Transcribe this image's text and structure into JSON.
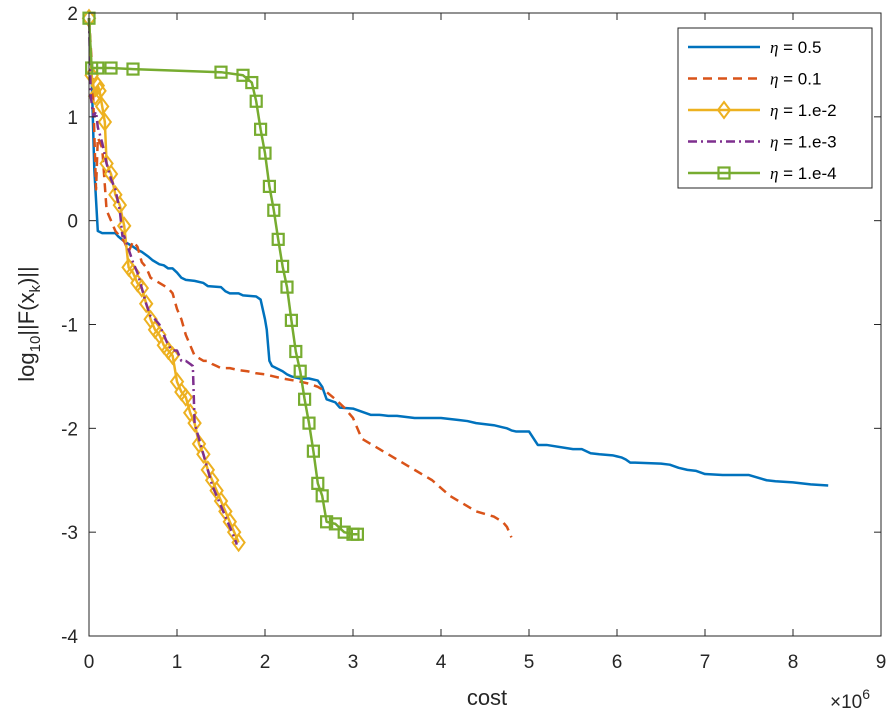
{
  "chart_data": {
    "type": "line",
    "title": "",
    "xlabel": "cost",
    "ylabel_main": "log",
    "ylabel_sub10": "10",
    "ylabel_mid": "||F(x",
    "ylabel_subk": "k",
    "ylabel_end": ")||",
    "x_exponent_base": "×10",
    "x_exponent_power": "6",
    "xlim": [
      0,
      9
    ],
    "ylim": [
      -4,
      2
    ],
    "xticks": [
      0,
      1,
      2,
      3,
      4,
      5,
      6,
      7,
      8,
      9
    ],
    "yticks": [
      2,
      1,
      0,
      -1,
      -2,
      -3,
      -4
    ],
    "legend_position": "top-right",
    "grid": false,
    "series": [
      {
        "name": "η = 0.5",
        "eta_symbol": "η",
        "eta_value": " = 0.5",
        "color": "#0072BD",
        "dash": "solid",
        "marker": "none",
        "x": [
          0.0,
          0.03,
          0.06,
          0.1,
          0.15,
          0.3,
          0.33,
          0.4,
          0.5,
          0.55,
          0.6,
          0.68,
          0.72,
          0.8,
          0.85,
          0.9,
          0.95,
          1.0,
          1.05,
          1.1,
          1.2,
          1.3,
          1.35,
          1.5,
          1.55,
          1.6,
          1.7,
          1.75,
          1.9,
          1.95,
          2.0,
          2.02,
          2.05,
          2.08,
          2.2,
          2.25,
          2.3,
          2.4,
          2.5,
          2.6,
          2.65,
          2.7,
          2.8,
          2.85,
          3.0,
          3.1,
          3.2,
          3.3,
          3.4,
          3.5,
          3.7,
          4.0,
          4.2,
          4.3,
          4.4,
          4.6,
          4.7,
          4.75,
          4.8,
          4.85,
          4.9,
          5.0,
          5.1,
          5.2,
          5.5,
          5.6,
          5.7,
          5.8,
          5.95,
          6.0,
          6.05,
          6.1,
          6.15,
          6.2,
          6.5,
          6.6,
          6.7,
          6.8,
          6.9,
          7.0,
          7.2,
          7.5,
          7.7,
          7.8,
          8.0,
          8.2,
          8.4
        ],
        "y": [
          1.95,
          1.4,
          0.5,
          -0.1,
          -0.12,
          -0.12,
          -0.15,
          -0.2,
          -0.25,
          -0.28,
          -0.3,
          -0.35,
          -0.38,
          -0.42,
          -0.43,
          -0.46,
          -0.46,
          -0.5,
          -0.55,
          -0.57,
          -0.58,
          -0.6,
          -0.63,
          -0.64,
          -0.68,
          -0.7,
          -0.7,
          -0.72,
          -0.73,
          -0.76,
          -0.95,
          -1.05,
          -1.35,
          -1.4,
          -1.45,
          -1.48,
          -1.5,
          -1.52,
          -1.52,
          -1.54,
          -1.6,
          -1.72,
          -1.75,
          -1.8,
          -1.81,
          -1.84,
          -1.87,
          -1.87,
          -1.88,
          -1.88,
          -1.9,
          -1.9,
          -1.92,
          -1.93,
          -1.95,
          -1.97,
          -1.99,
          -2.0,
          -2.02,
          -2.03,
          -2.03,
          -2.03,
          -2.16,
          -2.16,
          -2.2,
          -2.2,
          -2.24,
          -2.25,
          -2.26,
          -2.27,
          -2.28,
          -2.3,
          -2.33,
          -2.33,
          -2.34,
          -2.35,
          -2.38,
          -2.4,
          -2.41,
          -2.44,
          -2.45,
          -2.45,
          -2.5,
          -2.51,
          -2.52,
          -2.54,
          -2.55
        ]
      },
      {
        "name": "η = 0.1",
        "eta_symbol": "η",
        "eta_value": " = 0.1",
        "color": "#D95319",
        "dash": "dashed",
        "marker": "none",
        "x": [
          0.0,
          0.04,
          0.08,
          0.1,
          0.15,
          0.2,
          0.3,
          0.4,
          0.45,
          0.5,
          0.55,
          0.6,
          0.65,
          0.7,
          0.8,
          0.9,
          0.95,
          1.0,
          1.05,
          1.1,
          1.2,
          1.3,
          1.35,
          1.4,
          1.45,
          1.5,
          1.6,
          1.7,
          1.8,
          1.9,
          2.0,
          2.1,
          2.2,
          2.4,
          2.5,
          2.6,
          2.7,
          2.8,
          2.9,
          3.0,
          3.05,
          3.1,
          3.2,
          3.3,
          3.5,
          3.6,
          3.7,
          3.8,
          3.9,
          4.1,
          4.2,
          4.3,
          4.4,
          4.6,
          4.7,
          4.75,
          4.8
        ],
        "y": [
          1.95,
          1.4,
          0.3,
          0.8,
          0.7,
          0.1,
          -0.1,
          -0.2,
          -0.3,
          -0.2,
          -0.25,
          -0.4,
          -0.45,
          -0.55,
          -0.6,
          -0.65,
          -0.7,
          -0.85,
          -0.95,
          -1.1,
          -1.3,
          -1.35,
          -1.35,
          -1.38,
          -1.4,
          -1.42,
          -1.42,
          -1.44,
          -1.45,
          -1.47,
          -1.48,
          -1.5,
          -1.52,
          -1.55,
          -1.57,
          -1.6,
          -1.65,
          -1.72,
          -1.8,
          -1.9,
          -2.0,
          -2.1,
          -2.15,
          -2.2,
          -2.3,
          -2.35,
          -2.4,
          -2.45,
          -2.5,
          -2.65,
          -2.7,
          -2.75,
          -2.8,
          -2.85,
          -2.9,
          -2.95,
          -3.05
        ]
      },
      {
        "name": "η = 1.e-2",
        "eta_symbol": "η",
        "eta_value": " = 1.e-2",
        "color": "#EDB120",
        "dash": "solid",
        "marker": "diamond",
        "x": [
          0.0,
          0.03,
          0.07,
          0.1,
          0.12,
          0.15,
          0.18,
          0.2,
          0.25,
          0.3,
          0.35,
          0.4,
          0.45,
          0.5,
          0.55,
          0.6,
          0.65,
          0.7,
          0.75,
          0.8,
          0.85,
          0.9,
          0.95,
          1.0,
          1.05,
          1.1,
          1.15,
          1.2,
          1.25,
          1.3,
          1.35,
          1.4,
          1.45,
          1.5,
          1.55,
          1.6,
          1.65,
          1.7
        ],
        "y": [
          1.95,
          1.4,
          1.2,
          1.3,
          1.25,
          1.1,
          0.95,
          0.55,
          0.45,
          0.25,
          0.15,
          -0.05,
          -0.45,
          -0.5,
          -0.6,
          -0.65,
          -0.8,
          -0.95,
          -1.05,
          -1.1,
          -1.2,
          -1.25,
          -1.3,
          -1.55,
          -1.65,
          -1.7,
          -1.85,
          -1.95,
          -2.15,
          -2.25,
          -2.4,
          -2.5,
          -2.6,
          -2.7,
          -2.8,
          -2.9,
          -3.0,
          -3.1
        ]
      },
      {
        "name": "η = 1.e-3",
        "eta_symbol": "η",
        "eta_value": " = 1.e-3",
        "color": "#7E2F8E",
        "dash": "dashdot",
        "marker": "none",
        "x": [
          0.0,
          0.02,
          0.05,
          0.08,
          0.1,
          0.15,
          0.2,
          0.25,
          0.3,
          0.35,
          0.38,
          0.4,
          0.42,
          0.5,
          0.55,
          0.6,
          0.65,
          0.7,
          0.75,
          0.8,
          0.85,
          0.9,
          0.95,
          1.0,
          1.05,
          1.1,
          1.15,
          1.18,
          1.2,
          1.25,
          1.3,
          1.35,
          1.4,
          1.45,
          1.5,
          1.55,
          1.6,
          1.65,
          1.68
        ],
        "y": [
          1.95,
          1.2,
          1.0,
          1.05,
          0.9,
          0.75,
          0.55,
          0.4,
          0.3,
          0.1,
          -0.15,
          -0.15,
          -0.2,
          -0.4,
          -0.5,
          -0.65,
          -0.8,
          -0.92,
          -0.95,
          -1.0,
          -1.1,
          -1.2,
          -1.25,
          -1.25,
          -1.35,
          -1.35,
          -1.38,
          -1.4,
          -1.95,
          -2.1,
          -2.25,
          -2.4,
          -2.55,
          -2.65,
          -2.75,
          -2.85,
          -2.95,
          -3.05,
          -3.12
        ]
      },
      {
        "name": "η = 1.e-4",
        "eta_symbol": "η",
        "eta_value": " = 1.e-4",
        "color": "#77AC30",
        "dash": "solid",
        "marker": "square",
        "x": [
          0.0,
          0.03,
          0.1,
          0.25,
          0.5,
          1.5,
          1.75,
          1.85,
          1.9,
          1.95,
          2.0,
          2.05,
          2.1,
          2.15,
          2.2,
          2.25,
          2.3,
          2.35,
          2.4,
          2.45,
          2.5,
          2.55,
          2.6,
          2.65,
          2.7,
          2.8,
          2.9,
          3.0,
          3.05
        ],
        "y": [
          1.95,
          1.47,
          1.47,
          1.47,
          1.46,
          1.43,
          1.4,
          1.33,
          1.15,
          0.88,
          0.65,
          0.33,
          0.1,
          -0.18,
          -0.44,
          -0.64,
          -0.96,
          -1.26,
          -1.45,
          -1.72,
          -1.95,
          -2.22,
          -2.53,
          -2.65,
          -2.9,
          -2.92,
          -3.0,
          -3.02,
          -3.02
        ]
      }
    ]
  }
}
